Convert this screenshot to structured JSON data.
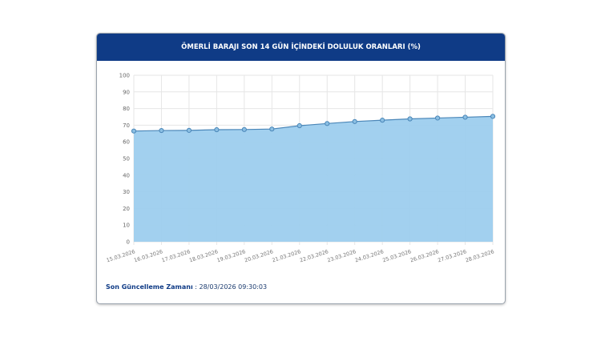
{
  "chart_data": {
    "type": "area",
    "title": "ÖMERLİ BARAJI SON 14 GÜN İÇİNDEKİ DOLULUK ORANLARI (%)",
    "categories": [
      "15.03.2026",
      "16.03.2026",
      "17.03.2026",
      "18.03.2026",
      "19.03.2026",
      "20.03.2026",
      "21.03.2026",
      "22.03.2026",
      "23.03.2026",
      "24.03.2026",
      "25.03.2026",
      "26.03.2026",
      "27.03.2026",
      "28.03.2026"
    ],
    "values": [
      66.5,
      66.8,
      66.9,
      67.3,
      67.4,
      67.7,
      69.7,
      71.0,
      72.2,
      73.0,
      73.8,
      74.3,
      74.8,
      75.3
    ],
    "yticks": [
      0,
      10,
      20,
      30,
      40,
      50,
      60,
      70,
      80,
      90,
      100
    ],
    "ylim": [
      0,
      100
    ],
    "grid": true,
    "xlabel": "",
    "ylabel": "",
    "fill_color": "#9dcdee",
    "line_color": "#4a86b8"
  },
  "footer": {
    "label": "Son Güncelleme Zamanı",
    "value": ": 28/03/2026 09:30:03"
  }
}
